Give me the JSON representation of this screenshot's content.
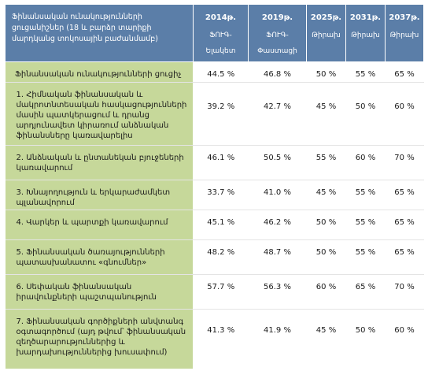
{
  "header": {
    "title": "Ֆինանսական ունակությունների ցուցանիշներ (18 և բարձր տարիքի մարդկանց տոկոսային բաժանմամբ)",
    "columns": [
      {
        "year": "2014թ.",
        "line1": "ՖՈՒԳ-",
        "line2": "Ելակետ"
      },
      {
        "year": "2019թ.",
        "line1": "ՖՈՒԳ-",
        "line2": "Փաստացի"
      },
      {
        "year": "2025թ.",
        "line1": "",
        "line2": "Թիրախ"
      },
      {
        "year": "2031թ.",
        "line1": "",
        "line2": "Թիրախ"
      },
      {
        "year": "2037թ.",
        "line1": "",
        "line2": "Թիրախ"
      }
    ]
  },
  "rows": [
    {
      "label": "Ֆինանսական ունակությունների ցուցիչ",
      "values": [
        "44.5 %",
        "46.8 %",
        "50 %",
        "55 %",
        "65 %"
      ]
    },
    {
      "label": "1. Հիմնական ֆինանսական և մակրոտնտեսական հասկացությունների մասին պատկերացում և դրանց արդյունավետ կիրառում անձնական ֆինանսները կառավարելիս",
      "values": [
        "39.2 %",
        "42.7 %",
        "45 %",
        "50 %",
        "60 %"
      ]
    },
    {
      "label": "2. Անձնական և ընտանեկան բյուջեների կառավարում",
      "values": [
        "46.1 %",
        "50.5 %",
        "55 %",
        "60 %",
        "70 %"
      ]
    },
    {
      "label": "3. Խնայողություն և երկարաժամկետ պլանավորում",
      "values": [
        "33.7 %",
        "41.0 %",
        "45 %",
        "55 %",
        "65 %"
      ]
    },
    {
      "label": "4. Վարկեր և պարտքի կառավարում",
      "values": [
        "45.1 %",
        "46.2 %",
        "50 %",
        "55 %",
        "65 %"
      ]
    },
    {
      "label": "5. Ֆինանսական ծառայությունների պատասխանատու «գնումներ»",
      "values": [
        "48.2 %",
        "48.7 %",
        "50 %",
        "55 %",
        "65 %"
      ]
    },
    {
      "label": "6. Սեփական ֆինանսական իրավունքների պաշտպանություն",
      "values": [
        "57.7 %",
        "56.3 %",
        "60 %",
        "65 %",
        "70 %"
      ]
    },
    {
      "label": "7. Ֆինանսական գործիքների անվտանգ օգտագործում (այդ թվում՝ ֆինանսական զեղծարարություններից և խարդախություններից խուսափում)",
      "values": [
        "41.3 %",
        "41.9 %",
        "45 %",
        "50 %",
        "60 %"
      ]
    }
  ]
}
